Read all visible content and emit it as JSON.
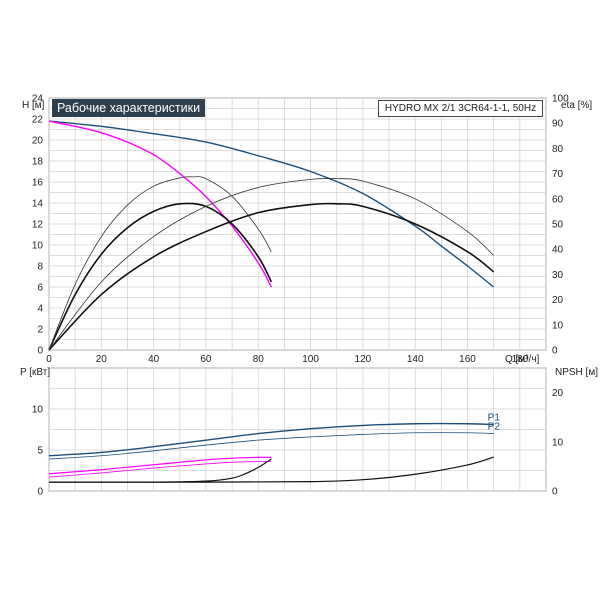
{
  "chart_data": [
    {
      "type": "line",
      "title": "Рабочие характеристики",
      "subtitle": "HYDRO MX 2/1 3CR64-1-1, 50Hz",
      "xlabel": "Q [м³/ч]",
      "ylabel": "H [м]",
      "y2label": "eta [%]",
      "xlim": [
        0,
        190
      ],
      "ylim": [
        0,
        24
      ],
      "y2lim": [
        0,
        100
      ],
      "xticks": [
        "0",
        "20",
        "40",
        "60",
        "80",
        "100",
        "120",
        "140",
        "160",
        "180"
      ],
      "yticks": [
        "0",
        "2",
        "4",
        "6",
        "8",
        "10",
        "12",
        "14",
        "16",
        "18",
        "20",
        "22",
        "24"
      ],
      "y2ticks": [
        "0",
        "10",
        "20",
        "30",
        "40",
        "50",
        "60",
        "70",
        "80",
        "90",
        "100"
      ],
      "grid": true,
      "series": [
        {
          "axis": "H",
          "color": "#1b4f7a",
          "width": 1.4,
          "x": [
            0,
            20,
            40,
            60,
            80,
            100,
            120,
            140,
            150,
            160,
            170
          ],
          "y": [
            21.8,
            21.3,
            20.6,
            19.8,
            18.5,
            17.0,
            14.9,
            11.8,
            9.9,
            8.0,
            6.0
          ]
        },
        {
          "axis": "H",
          "color": "#ff00ff",
          "width": 1.4,
          "x": [
            0,
            10,
            20,
            30,
            40,
            50,
            60,
            70,
            80,
            85
          ],
          "y": [
            21.8,
            21.3,
            20.7,
            19.8,
            18.6,
            16.8,
            14.6,
            11.8,
            8.3,
            6.0
          ]
        },
        {
          "axis": "eta",
          "color": "#111111",
          "width": 1.6,
          "x": [
            0,
            10,
            20,
            30,
            40,
            50,
            60,
            70,
            80,
            85
          ],
          "y": [
            0,
            22.0,
            38.0,
            48.5,
            55.0,
            58.0,
            57.0,
            50.0,
            37.0,
            27.0
          ]
        },
        {
          "axis": "eta",
          "color": "#333333",
          "width": 0.8,
          "x": [
            0,
            10,
            20,
            30,
            40,
            50,
            55,
            60,
            70,
            80,
            85
          ],
          "y": [
            0,
            26.0,
            45.0,
            57.5,
            65.0,
            68.3,
            68.7,
            68.0,
            61.0,
            48.0,
            39.0
          ]
        },
        {
          "axis": "eta",
          "color": "#111111",
          "width": 1.6,
          "x": [
            0,
            20,
            40,
            60,
            80,
            100,
            110,
            120,
            140,
            160,
            170
          ],
          "y": [
            0,
            22.0,
            37.0,
            47.0,
            54.5,
            57.7,
            58.0,
            57.0,
            50.0,
            39.0,
            31.0
          ]
        },
        {
          "axis": "eta",
          "color": "#333333",
          "width": 0.8,
          "x": [
            0,
            20,
            40,
            60,
            80,
            100,
            110,
            120,
            140,
            160,
            170
          ],
          "y": [
            0,
            27.0,
            45.0,
            57.0,
            64.5,
            67.7,
            68.0,
            67.0,
            60.0,
            47.0,
            37.5
          ]
        }
      ]
    },
    {
      "type": "line",
      "xlim": [
        0,
        190
      ],
      "ylabel": "P [кВт]",
      "y2label": "NPSH [м]",
      "ylim": [
        0,
        15
      ],
      "y2lim": [
        0,
        25
      ],
      "yticks": [
        "0",
        "5",
        "10"
      ],
      "y2ticks": [
        "0",
        "10",
        "20"
      ],
      "grid": true,
      "series": [
        {
          "name": "P1",
          "axis": "P",
          "color": "#1b4f7a",
          "width": 1.4,
          "x": [
            0,
            20,
            40,
            60,
            80,
            100,
            120,
            140,
            160,
            170
          ],
          "y": [
            4.3,
            4.7,
            5.4,
            6.2,
            7.0,
            7.6,
            8.0,
            8.2,
            8.2,
            8.1
          ]
        },
        {
          "name": "P2",
          "axis": "P",
          "color": "#1b4f7a",
          "width": 0.8,
          "x": [
            0,
            20,
            40,
            60,
            80,
            100,
            120,
            140,
            160,
            170
          ],
          "y": [
            3.9,
            4.3,
            4.9,
            5.6,
            6.2,
            6.6,
            6.9,
            7.1,
            7.1,
            7.0
          ]
        },
        {
          "axis": "P",
          "color": "#ff00ff",
          "width": 1.2,
          "x": [
            0,
            20,
            40,
            60,
            70,
            80,
            85
          ],
          "y": [
            2.1,
            2.6,
            3.2,
            3.8,
            4.0,
            4.1,
            4.1
          ]
        },
        {
          "axis": "P",
          "color": "#ff00ff",
          "width": 0.8,
          "x": [
            0,
            20,
            40,
            60,
            70,
            80,
            85
          ],
          "y": [
            1.7,
            2.2,
            2.8,
            3.3,
            3.5,
            3.6,
            3.6
          ]
        },
        {
          "axis": "NPSH",
          "color": "#111111",
          "width": 1.2,
          "x": [
            0,
            40,
            60,
            70,
            75,
            80,
            85
          ],
          "y": [
            1.8,
            1.8,
            2.0,
            2.6,
            3.5,
            4.8,
            6.5
          ]
        },
        {
          "axis": "NPSH",
          "color": "#111111",
          "width": 1.2,
          "x": [
            0,
            60,
            100,
            120,
            140,
            160,
            170
          ],
          "y": [
            1.8,
            1.8,
            1.9,
            2.3,
            3.4,
            5.3,
            6.9
          ]
        }
      ]
    }
  ]
}
